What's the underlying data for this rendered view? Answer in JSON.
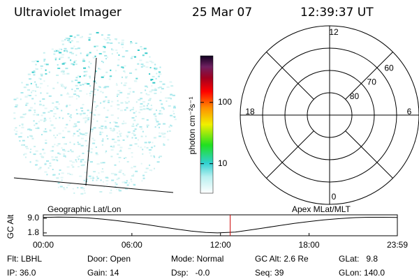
{
  "header": {
    "title": "Ultraviolet Imager",
    "date": "25 Mar 07",
    "time": "12:39:37 UT"
  },
  "image": {
    "caption": "Geographic Lat/Lon"
  },
  "colorbar": {
    "label": "photon cm⁻²s⁻¹",
    "clim": [
      3.3,
      575
    ],
    "log": true,
    "ticks": [
      10,
      100
    ]
  },
  "polar": {
    "caption": "Apex MLat/MLT",
    "rlim": [
      90,
      50
    ],
    "lat_rings": [
      60,
      70,
      80
    ],
    "mlt_ticks": [
      0,
      6,
      12,
      18
    ]
  },
  "chart_data": {
    "type": "line",
    "ylabel": "GC Alt",
    "x": [
      0,
      1,
      2,
      3,
      4,
      5,
      6,
      7,
      8,
      9,
      10,
      11,
      11.8,
      13,
      14,
      15,
      16,
      17,
      18,
      19,
      20,
      21,
      22,
      23,
      23.98
    ],
    "values": [
      9.4,
      9.6,
      9.5,
      9.2,
      8.6,
      7.8,
      6.9,
      5.9,
      4.8,
      3.7,
      2.7,
      2.0,
      1.8,
      2.2,
      3.2,
      4.3,
      5.4,
      6.5,
      7.4,
      8.2,
      8.8,
      9.3,
      9.5,
      9.5,
      9.4
    ],
    "color": "#000000",
    "xlim": [
      0,
      23.98
    ],
    "xticks": [
      {
        "value": 0,
        "label": "00:00"
      },
      {
        "value": 6,
        "label": "06:00"
      },
      {
        "value": 12,
        "label": "12:00"
      },
      {
        "value": 18,
        "label": "18:00"
      },
      {
        "value": 23.98,
        "label": "23:59"
      }
    ],
    "ylim": [
      0.4,
      10.7
    ],
    "yticks": [
      {
        "value": 9,
        "label": "9.0"
      },
      1.8
    ],
    "marker": {
      "x": 12.66,
      "color": "#cc0000"
    }
  },
  "footer": {
    "rows": [
      [
        "Flt: LBHL",
        "Door: Open",
        "Mode: Normal",
        "GC Alt: 2.6 Re",
        "GLat:   9.8"
      ],
      [
        "IP: 36.0",
        "Gain: 14",
        "Dsp:   -0.0",
        "Seq: 39",
        "GLon: 140.0"
      ]
    ]
  }
}
